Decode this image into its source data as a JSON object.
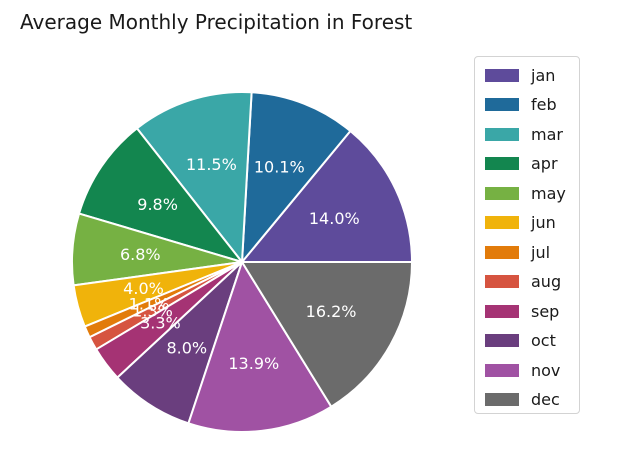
{
  "chart_data": {
    "type": "pie",
    "title": "Average Monthly Precipitation in Forest",
    "start_angle_deg": 0,
    "direction": "counterclockwise",
    "legend_position": "right",
    "slices": [
      {
        "label": "jan",
        "value": 14.0,
        "display": "14.0%",
        "color": "#5e4b9b"
      },
      {
        "label": "feb",
        "value": 10.1,
        "display": "10.1%",
        "color": "#1f6a9a"
      },
      {
        "label": "mar",
        "value": 11.5,
        "display": "11.5%",
        "color": "#3aa7a7"
      },
      {
        "label": "apr",
        "value": 9.8,
        "display": "9.8%",
        "color": "#13864f"
      },
      {
        "label": "may",
        "value": 6.8,
        "display": "6.8%",
        "color": "#76b143"
      },
      {
        "label": "jun",
        "value": 4.0,
        "display": "4.0%",
        "color": "#f0b30b"
      },
      {
        "label": "jul",
        "value": 1.1,
        "display": "1.1%",
        "color": "#e27b0a"
      },
      {
        "label": "aug",
        "value": 1.3,
        "display": "1.3%",
        "color": "#d65440"
      },
      {
        "label": "sep",
        "value": 3.3,
        "display": "3.3%",
        "color": "#a53374"
      },
      {
        "label": "oct",
        "value": 8.0,
        "display": "8.0%",
        "color": "#6a3e7e"
      },
      {
        "label": "nov",
        "value": 13.9,
        "display": "13.9%",
        "color": "#a052a3"
      },
      {
        "label": "dec",
        "value": 16.2,
        "display": "16.2%",
        "color": "#6b6b6b"
      }
    ]
  }
}
